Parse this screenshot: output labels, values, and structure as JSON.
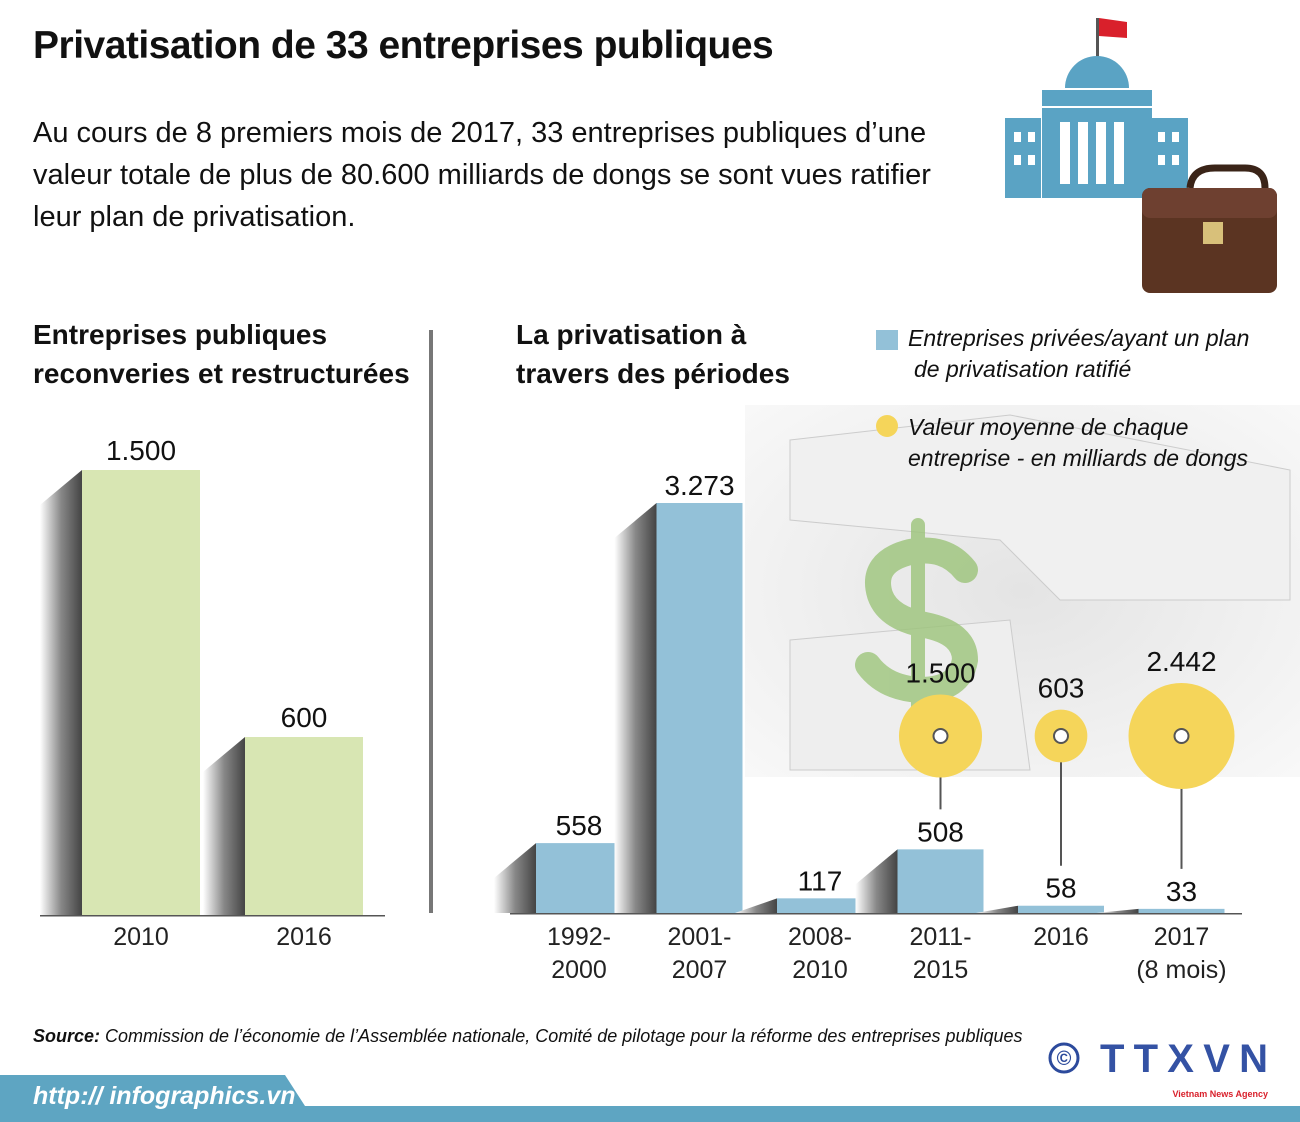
{
  "title": "Privatisation de 33 entreprises publiques",
  "lead": "Au cours de 8 premiers mois de 2017, 33 entreprises publiques d’une valeur totale de plus de 80.600 milliards de dongs se sont vues ratifier leur plan de privatisation.",
  "colors": {
    "left_bar": "#d8e6b3",
    "right_bar": "#93c1d8",
    "bubble": "#f5d55a",
    "footer": "#5ea5c2",
    "building": "#5aa3c4"
  },
  "icons": [
    "government-building-icon",
    "briefcase-icon",
    "dollar-puzzle-icon"
  ],
  "chart_data": [
    {
      "type": "bar",
      "title": "Entreprises publiques reconveries et restructurées",
      "categories": [
        "2010",
        "2016"
      ],
      "values": [
        1500,
        600
      ],
      "value_labels": [
        "1.500",
        "600"
      ],
      "ylim": [
        0,
        1500
      ]
    },
    {
      "type": "bar",
      "title": "La privatisation à travers des périodes",
      "categories": [
        [
          "1992-",
          "2000"
        ],
        [
          "2001-",
          "2007"
        ],
        [
          "2008-",
          "2010"
        ],
        [
          "2011-",
          "2015"
        ],
        [
          "2016",
          ""
        ],
        [
          "2017",
          "(8 mois)"
        ]
      ],
      "series": [
        {
          "name": "Entreprises privées/ayant un plan de privatisation ratifié",
          "values": [
            558,
            3273,
            117,
            508,
            58,
            33
          ],
          "value_labels": [
            "558",
            "3.273",
            "117",
            "508",
            "58",
            "33"
          ]
        },
        {
          "name": "Valeur moyenne de chaque entreprise - en milliards de dongs",
          "type": "bubble",
          "values": [
            null,
            null,
            null,
            1500,
            603,
            2442
          ],
          "value_labels": [
            "",
            "",
            "",
            "1.500",
            "603",
            "2.442"
          ]
        }
      ],
      "legend": {
        "item1_line1": "Entreprises privées/ayant un plan",
        "item1_line2": "de privatisation ratifié",
        "item2_line1": "Valeur moyenne de chaque",
        "item2_line2": "entreprise - en milliards de dongs",
        "placement": "top-right"
      },
      "ylim": [
        0,
        3273
      ]
    }
  ],
  "sections": {
    "left_line1": "Entreprises publiques",
    "left_line2": "reconveries et restructurées",
    "right_line1": "La privatisation à",
    "right_line2": "travers des périodes"
  },
  "footer": {
    "source_label": "Source:",
    "source_text": " Commission de l’économie de l’Assemblée nationale, Comité de pilotage pour la réforme des entreprises publiques",
    "url": "http:// infographics.vn",
    "logo": "TTXVN",
    "logo_sub": "Vietnam News Agency",
    "copyright": "©"
  }
}
